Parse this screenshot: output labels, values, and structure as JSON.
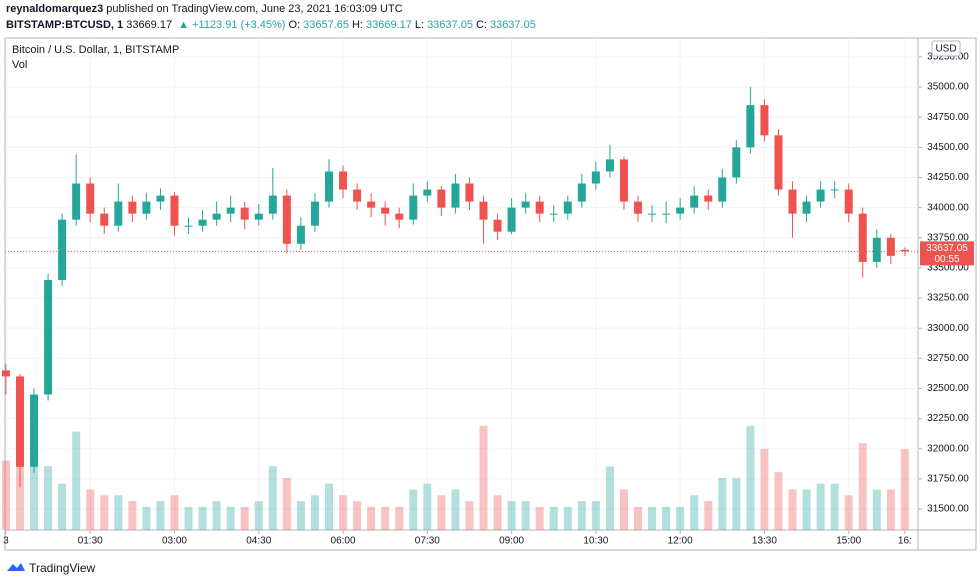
{
  "header": {
    "author": "reynaldomarquez3",
    "published": "published on TradingView.com, June 23, 2021 16:03:09 UTC",
    "symbol": "BITSTAMP:BTCUSD, 1",
    "price": "33669.17",
    "change": "▲ +1123.91 (+3.45%)",
    "o_label": "O:",
    "o_value": "33657.65",
    "h_label": "H:",
    "h_value": "33669.17",
    "l_label": "L:",
    "l_value": "33637.05",
    "c_label": "C:",
    "c_value": "33637.05"
  },
  "chart_data": {
    "type": "candlestick",
    "title": "Bitcoin / U.S. Dollar, 1, BITSTAMP",
    "volume_label": "Vol",
    "currency": "USD",
    "up_color": "#26a69a",
    "down_color": "#ef5350",
    "grid": true,
    "x": [
      0,
      15,
      30,
      45,
      60,
      75,
      90,
      105,
      120,
      135,
      150,
      165,
      180,
      195,
      210,
      225,
      240,
      255,
      270,
      285,
      300,
      315,
      330,
      345,
      360,
      375,
      390,
      405,
      420,
      435,
      450,
      465,
      480,
      495,
      510,
      525,
      540,
      555,
      570,
      585,
      600,
      615,
      630,
      645,
      660,
      675,
      690,
      705,
      720,
      735,
      750,
      765,
      780,
      795,
      810,
      825,
      840,
      855,
      870,
      885,
      900,
      915,
      930,
      945,
      960
    ],
    "open": [
      32650,
      32600,
      31850,
      32450,
      33400,
      33900,
      34200,
      33950,
      33850,
      34050,
      33950,
      34050,
      34100,
      33850,
      33850,
      33900,
      33950,
      34000,
      33900,
      33950,
      34100,
      33700,
      33850,
      34050,
      34300,
      34150,
      34050,
      34000,
      33950,
      33900,
      34100,
      34150,
      34000,
      34200,
      34050,
      33900,
      33800,
      34000,
      34050,
      33950,
      33950,
      34050,
      34200,
      34300,
      34400,
      34050,
      33950,
      33950,
      33950,
      34000,
      34100,
      34050,
      34250,
      34500,
      34850,
      34600,
      34150,
      33950,
      34050,
      34150,
      34150,
      33950,
      33550,
      33750,
      33650
    ],
    "high": [
      32700,
      32620,
      32500,
      33450,
      33950,
      34440,
      34250,
      34000,
      34200,
      34100,
      34120,
      34160,
      34130,
      33920,
      33980,
      34050,
      34100,
      34050,
      34030,
      34330,
      34150,
      33920,
      34120,
      34400,
      34350,
      34200,
      34120,
      34050,
      34000,
      34200,
      34220,
      34180,
      34280,
      34250,
      34100,
      33950,
      34080,
      34120,
      34100,
      34020,
      34100,
      34280,
      34380,
      34520,
      34420,
      34100,
      34020,
      34050,
      34080,
      34180,
      34150,
      34320,
      34560,
      35000,
      34900,
      34650,
      34220,
      34100,
      34220,
      34220,
      34200,
      34000,
      33820,
      33780,
      33669
    ],
    "low": [
      32450,
      31680,
      31800,
      32400,
      33350,
      33850,
      33880,
      33780,
      33800,
      33880,
      33900,
      33980,
      33770,
      33780,
      33800,
      33850,
      33880,
      33820,
      33850,
      33900,
      33620,
      33650,
      33800,
      34000,
      34080,
      33980,
      33920,
      33850,
      33830,
      33860,
      34050,
      33930,
      33950,
      33980,
      33700,
      33730,
      33780,
      33950,
      33880,
      33880,
      33900,
      34000,
      34150,
      34250,
      33980,
      33880,
      33880,
      33870,
      33900,
      33950,
      33980,
      34000,
      34200,
      34450,
      34550,
      34100,
      33750,
      33880,
      34000,
      34080,
      33880,
      33420,
      33500,
      33530,
      33600
    ],
    "close": [
      32600,
      31850,
      32450,
      33400,
      33900,
      34200,
      33950,
      33850,
      34050,
      33950,
      34050,
      34100,
      33850,
      33850,
      33900,
      33950,
      34000,
      33900,
      33950,
      34100,
      33700,
      33850,
      34050,
      34300,
      34150,
      34050,
      34000,
      33950,
      33900,
      34100,
      34150,
      34000,
      34200,
      34050,
      33900,
      33800,
      34000,
      34050,
      33950,
      33950,
      34050,
      34200,
      34300,
      34400,
      34050,
      33950,
      33950,
      33950,
      34000,
      34100,
      34050,
      34250,
      34500,
      34850,
      34600,
      34150,
      33950,
      34050,
      34150,
      34150,
      33950,
      33550,
      33750,
      33600,
      33637
    ],
    "volume": [
      60,
      95,
      70,
      55,
      40,
      85,
      35,
      30,
      30,
      25,
      20,
      25,
      30,
      20,
      20,
      25,
      20,
      20,
      25,
      55,
      45,
      25,
      30,
      40,
      30,
      25,
      20,
      20,
      20,
      35,
      40,
      30,
      35,
      25,
      90,
      30,
      25,
      25,
      20,
      20,
      20,
      25,
      25,
      55,
      35,
      20,
      20,
      20,
      20,
      30,
      25,
      45,
      45,
      90,
      70,
      50,
      35,
      35,
      40,
      40,
      30,
      75,
      35,
      35,
      70
    ],
    "xlim": [
      -1,
      974
    ],
    "xticks": [
      {
        "value": 0,
        "label": "3"
      },
      {
        "value": 90,
        "label": "01:30"
      },
      {
        "value": 180,
        "label": "03:00"
      },
      {
        "value": 270,
        "label": "04:30"
      },
      {
        "value": 360,
        "label": "06:00"
      },
      {
        "value": 450,
        "label": "07:30"
      },
      {
        "value": 540,
        "label": "09:00"
      },
      {
        "value": 630,
        "label": "10:30"
      },
      {
        "value": 720,
        "label": "12:00"
      },
      {
        "value": 810,
        "label": "13:30"
      },
      {
        "value": 900,
        "label": "15:00"
      },
      {
        "value": 960,
        "label": "16:"
      }
    ],
    "ylim": [
      31326,
      35407
    ],
    "yticks": [
      {
        "value": 31500,
        "label": "31500.00"
      },
      {
        "value": 31750,
        "label": "31750.00"
      },
      {
        "value": 32000,
        "label": "32000.00"
      },
      {
        "value": 32250,
        "label": "32250.00"
      },
      {
        "value": 32500,
        "label": "32500.00"
      },
      {
        "value": 32750,
        "label": "32750.00"
      },
      {
        "value": 33000,
        "label": "33000.00"
      },
      {
        "value": 33250,
        "label": "33250.00"
      },
      {
        "value": 33500,
        "label": "33500.00"
      },
      {
        "value": 33750,
        "label": "33750.00"
      },
      {
        "value": 34000,
        "label": "34000.00"
      },
      {
        "value": 34250,
        "label": "34250.00"
      },
      {
        "value": 34500,
        "label": "34500.00"
      },
      {
        "value": 34750,
        "label": "34750.00"
      },
      {
        "value": 35000,
        "label": "35000.00"
      },
      {
        "value": 35250,
        "label": "35250.00"
      }
    ],
    "last_price": 33637.05,
    "countdown": "00:55"
  },
  "footer": {
    "brand": "TradingView"
  }
}
